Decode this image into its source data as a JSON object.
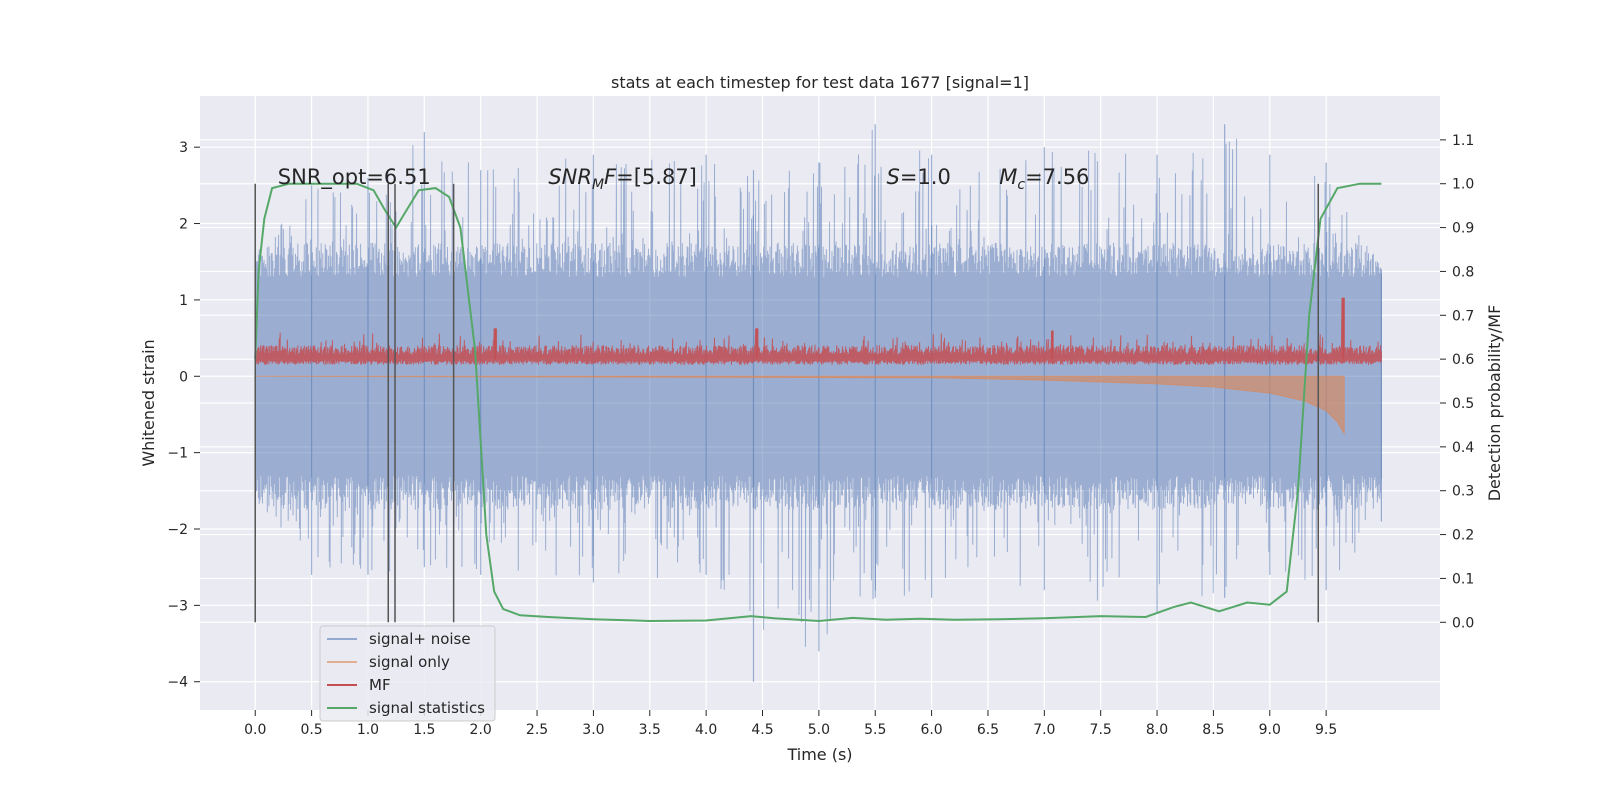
{
  "chart_data": {
    "type": "line",
    "title": "stats at each timestep for test data 1677 [signal=1]",
    "xlabel": "Time (s)",
    "ylabel": "Whitened strain",
    "ylabel_right": "Detection probability/MF",
    "xlim": [
      -0.49,
      10.51
    ],
    "ylim": [
      -4.37,
      3.67
    ],
    "ylim_right": [
      -0.2,
      1.2
    ],
    "x_ticks": [
      "0.0",
      "0.5",
      "1.0",
      "1.5",
      "2.0",
      "2.5",
      "3.0",
      "3.5",
      "4.0",
      "4.5",
      "5.0",
      "5.5",
      "6.0",
      "6.5",
      "7.0",
      "7.5",
      "8.0",
      "8.5",
      "9.0",
      "9.5"
    ],
    "y_ticks": [
      "3",
      "2",
      "1",
      "0",
      "−1",
      "−2",
      "−3",
      "−4"
    ],
    "y_right_ticks": [
      "1.1",
      "1.0",
      "0.9",
      "0.8",
      "0.7",
      "0.6",
      "0.5",
      "0.4",
      "0.3",
      "0.2",
      "0.1",
      "0.0"
    ],
    "grid": true,
    "legend_position": "lower-left",
    "annotations": [
      {
        "kind": "plain",
        "text": "SNR_opt=6.51",
        "x": 0.2
      },
      {
        "kind": "sub",
        "base": "SNR",
        "sub": "M",
        "rest": "F=[5.87]",
        "x": 2.6
      },
      {
        "kind": "italic",
        "base": "S",
        "rest": "=1.0",
        "x": 5.6
      },
      {
        "kind": "sub",
        "base": "M",
        "sub": "c",
        "rest": "=7.56",
        "x": 6.6
      }
    ],
    "vertical_markers": [
      0.0,
      1.18,
      1.24,
      1.76,
      9.43
    ],
    "series": [
      {
        "name": "signal+ noise",
        "color": "#4c72b0",
        "x_range": [
          0.0,
          9.99
        ],
        "envelope_strain": [
          [
            0.0,
            -1.6,
            1.6
          ],
          [
            0.5,
            -2.6,
            2.5
          ],
          [
            1.0,
            -2.6,
            2.6
          ],
          [
            1.5,
            -2.5,
            3.2
          ],
          [
            2.0,
            -2.6,
            2.7
          ],
          [
            3.0,
            -2.7,
            2.9
          ],
          [
            4.0,
            -2.6,
            2.9
          ],
          [
            4.42,
            -4.0,
            2.7
          ],
          [
            5.0,
            -3.6,
            2.8
          ],
          [
            5.5,
            -2.9,
            3.3
          ],
          [
            6.0,
            -2.9,
            2.9
          ],
          [
            7.0,
            -2.8,
            3.0
          ],
          [
            8.0,
            -3.1,
            2.9
          ],
          [
            8.6,
            -2.9,
            3.3
          ],
          [
            9.0,
            -2.6,
            2.9
          ],
          [
            9.5,
            -2.8,
            2.8
          ],
          [
            9.99,
            -1.9,
            1.4
          ]
        ]
      },
      {
        "name": "signal only",
        "color": "#dd8452",
        "points_strain": [
          [
            0.0,
            0.0
          ],
          [
            6.0,
            -0.02
          ],
          [
            7.0,
            -0.05
          ],
          [
            8.0,
            -0.1
          ],
          [
            8.5,
            -0.14
          ],
          [
            9.0,
            -0.22
          ],
          [
            9.3,
            -0.32
          ],
          [
            9.5,
            -0.45
          ],
          [
            9.6,
            -0.6
          ],
          [
            9.66,
            -0.75
          ]
        ]
      },
      {
        "name": "MF",
        "color": "#c44e52",
        "baseline_right": 0.6,
        "peaks_right": [
          [
            2.13,
            0.67
          ],
          [
            4.45,
            0.67
          ],
          [
            7.07,
            0.665
          ],
          [
            9.65,
            0.74
          ]
        ]
      },
      {
        "name": "signal statistics",
        "color": "#55a868",
        "points_right": [
          [
            0.0,
            0.6
          ],
          [
            0.03,
            0.8
          ],
          [
            0.08,
            0.92
          ],
          [
            0.15,
            0.99
          ],
          [
            0.3,
            1.0
          ],
          [
            0.6,
            1.0
          ],
          [
            0.9,
            1.0
          ],
          [
            1.05,
            0.985
          ],
          [
            1.15,
            0.94
          ],
          [
            1.25,
            0.9
          ],
          [
            1.32,
            0.93
          ],
          [
            1.45,
            0.985
          ],
          [
            1.6,
            0.99
          ],
          [
            1.72,
            0.97
          ],
          [
            1.82,
            0.9
          ],
          [
            1.95,
            0.62
          ],
          [
            2.05,
            0.2
          ],
          [
            2.12,
            0.07
          ],
          [
            2.2,
            0.03
          ],
          [
            2.35,
            0.016
          ],
          [
            2.6,
            0.012
          ],
          [
            3.0,
            0.007
          ],
          [
            3.5,
            0.003
          ],
          [
            4.0,
            0.004
          ],
          [
            4.4,
            0.014
          ],
          [
            4.6,
            0.009
          ],
          [
            5.0,
            0.003
          ],
          [
            5.3,
            0.01
          ],
          [
            5.6,
            0.006
          ],
          [
            5.9,
            0.008
          ],
          [
            6.2,
            0.006
          ],
          [
            6.6,
            0.007
          ],
          [
            7.0,
            0.009
          ],
          [
            7.5,
            0.014
          ],
          [
            7.9,
            0.012
          ],
          [
            8.15,
            0.035
          ],
          [
            8.3,
            0.045
          ],
          [
            8.55,
            0.025
          ],
          [
            8.8,
            0.045
          ],
          [
            9.0,
            0.04
          ],
          [
            9.15,
            0.07
          ],
          [
            9.25,
            0.3
          ],
          [
            9.35,
            0.7
          ],
          [
            9.45,
            0.92
          ],
          [
            9.6,
            0.99
          ],
          [
            9.8,
            1.0
          ],
          [
            9.99,
            1.0
          ]
        ]
      }
    ]
  }
}
